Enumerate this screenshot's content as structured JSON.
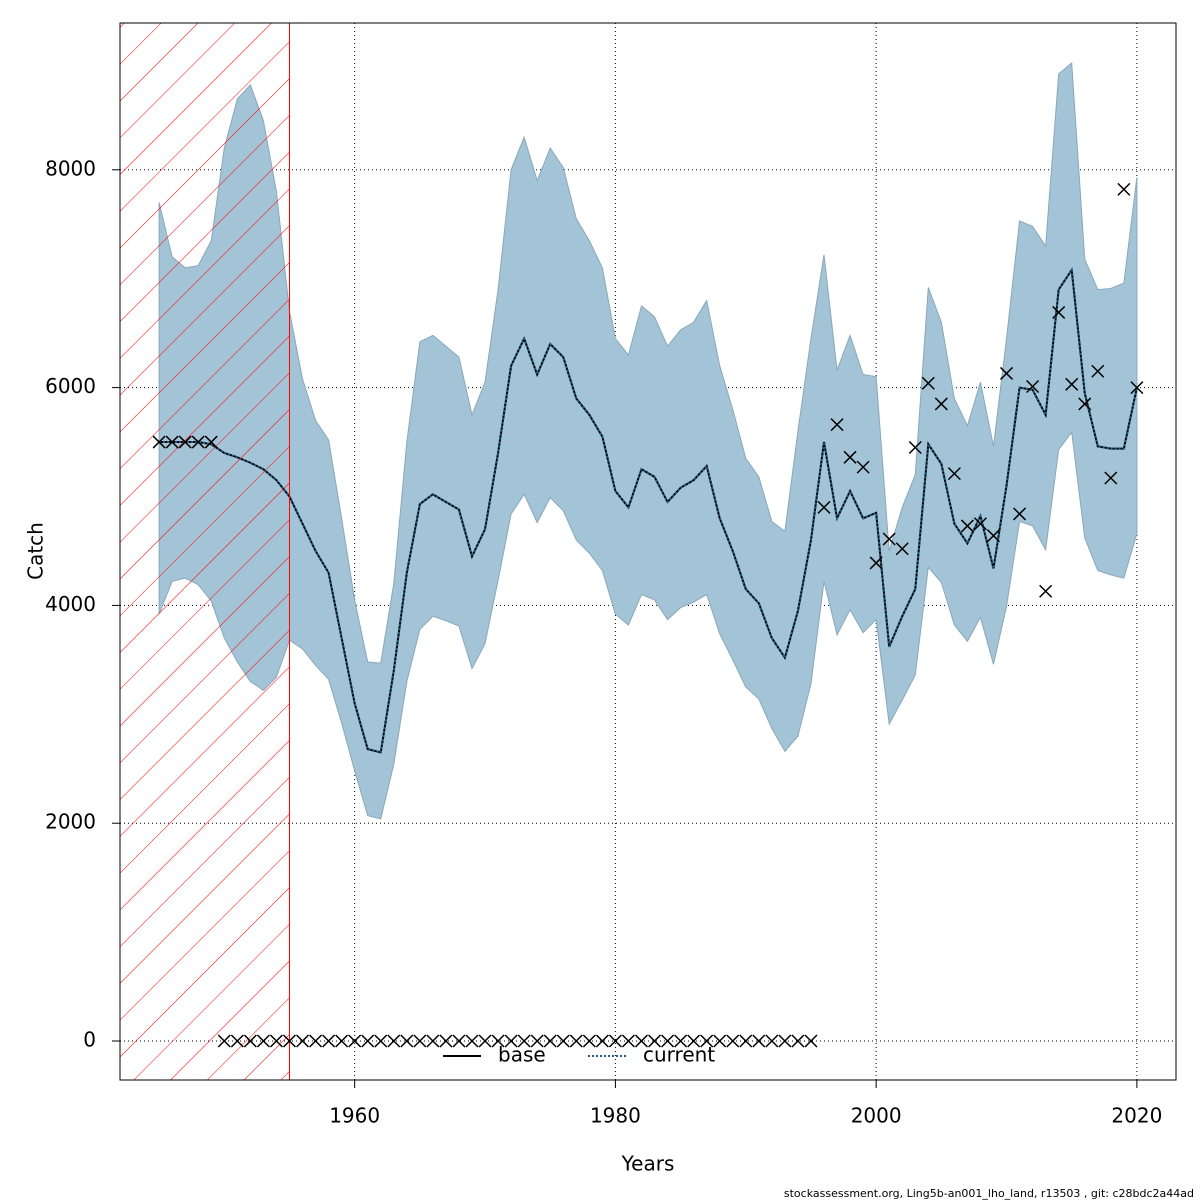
{
  "chart_data": {
    "type": "line",
    "xlabel": "Years",
    "ylabel": "Catch",
    "footer": "stockassessment.org, Ling5b-an001_lho_land, r13503 , git: c28bdc2a44ad",
    "xlim": [
      1942,
      2023
    ],
    "ylim": [
      -358,
      9348
    ],
    "xticks": [
      1960,
      1980,
      2000,
      2020
    ],
    "yticks": [
      0,
      2000,
      4000,
      6000,
      8000
    ],
    "grid": true,
    "legend": "bottom",
    "hatch_xlim": [
      1942,
      1955
    ],
    "hatch_color": "#ff0000",
    "x": [
      1945,
      1946,
      1947,
      1948,
      1949,
      1950,
      1951,
      1952,
      1953,
      1954,
      1955,
      1956,
      1957,
      1958,
      1959,
      1960,
      1961,
      1962,
      1963,
      1964,
      1965,
      1966,
      1967,
      1968,
      1969,
      1970,
      1971,
      1972,
      1973,
      1974,
      1975,
      1976,
      1977,
      1978,
      1979,
      1980,
      1981,
      1982,
      1983,
      1984,
      1985,
      1986,
      1987,
      1988,
      1989,
      1990,
      1991,
      1992,
      1993,
      1994,
      1995,
      1996,
      1997,
      1998,
      1999,
      2000,
      2001,
      2002,
      2003,
      2004,
      2005,
      2006,
      2007,
      2008,
      2009,
      2010,
      2011,
      2012,
      2013,
      2014,
      2015,
      2016,
      2017,
      2018,
      2019,
      2020
    ],
    "band": {
      "color": "#a3c3d6",
      "upper": [
        7700,
        7200,
        7100,
        7120,
        7350,
        8200,
        8650,
        8780,
        8450,
        7800,
        6700,
        6080,
        5700,
        5520,
        4800,
        4050,
        3480,
        3470,
        4200,
        5500,
        6420,
        6480,
        6380,
        6280,
        5750,
        6050,
        6900,
        8000,
        8300,
        7900,
        8200,
        8020,
        7550,
        7350,
        7100,
        6450,
        6300,
        6750,
        6650,
        6380,
        6530,
        6600,
        6800,
        6200,
        5800,
        5350,
        5180,
        4770,
        4680,
        5600,
        6450,
        7220,
        6160,
        6480,
        6120,
        6100,
        4500,
        4900,
        5200,
        6920,
        6600,
        5900,
        5650,
        6050,
        5460,
        6450,
        7530,
        7480,
        7300,
        8880,
        8980,
        7180,
        6900,
        6910,
        6960,
        7930
      ],
      "lower": [
        3920,
        4220,
        4250,
        4190,
        4040,
        3700,
        3480,
        3300,
        3220,
        3340,
        3680,
        3600,
        3450,
        3320,
        2920,
        2480,
        2070,
        2040,
        2540,
        3300,
        3780,
        3900,
        3860,
        3810,
        3420,
        3650,
        4230,
        4840,
        5020,
        4760,
        4990,
        4870,
        4600,
        4480,
        4320,
        3920,
        3820,
        4100,
        4050,
        3870,
        3980,
        4030,
        4100,
        3740,
        3500,
        3250,
        3140,
        2870,
        2660,
        2800,
        3280,
        4220,
        3730,
        3960,
        3750,
        3870,
        2910,
        3130,
        3360,
        4350,
        4210,
        3820,
        3670,
        3890,
        3460,
        3990,
        4770,
        4730,
        4510,
        5430,
        5590,
        4620,
        4320,
        4280,
        4250,
        4660
      ]
    },
    "series": [
      {
        "name": "base",
        "color": "#000000",
        "style": "solid",
        "values": [
          5500,
          5500,
          5500,
          5500,
          5480,
          5400,
          5360,
          5310,
          5250,
          5150,
          5000,
          4750,
          4500,
          4300,
          3700,
          3100,
          2680,
          2650,
          3400,
          4300,
          4930,
          5020,
          4950,
          4880,
          4450,
          4700,
          5400,
          6200,
          6450,
          6120,
          6400,
          6280,
          5900,
          5750,
          5550,
          5050,
          4900,
          5250,
          5180,
          4950,
          5080,
          5150,
          5280,
          4800,
          4500,
          4150,
          4020,
          3700,
          3520,
          3950,
          4600,
          5500,
          4800,
          5050,
          4800,
          4850,
          3620,
          3900,
          4150,
          5480,
          5300,
          4750,
          4570,
          4820,
          4340,
          5100,
          6000,
          5980,
          5750,
          6900,
          7080,
          5950,
          5460,
          5440,
          5440,
          6000
        ]
      },
      {
        "name": "current",
        "color": "#1f5f8b",
        "style": "dotted",
        "values": [
          5500,
          5500,
          5500,
          5500,
          5480,
          5400,
          5360,
          5310,
          5250,
          5150,
          5000,
          4750,
          4500,
          4300,
          3700,
          3100,
          2680,
          2650,
          3400,
          4300,
          4930,
          5020,
          4950,
          4880,
          4450,
          4700,
          5400,
          6200,
          6450,
          6120,
          6400,
          6280,
          5900,
          5750,
          5550,
          5050,
          4900,
          5250,
          5180,
          4950,
          5080,
          5150,
          5280,
          4800,
          4500,
          4150,
          4020,
          3700,
          3520,
          3950,
          4600,
          5500,
          4800,
          5050,
          4800,
          4850,
          3620,
          3900,
          4150,
          5480,
          5300,
          4750,
          4570,
          4820,
          4340,
          5100,
          6000,
          5980,
          5750,
          6900,
          7080,
          5950,
          5460,
          5440,
          5440,
          6000
        ]
      }
    ],
    "observed": {
      "color": "#000000",
      "values": [
        5500,
        5500,
        5500,
        5500,
        5500,
        0,
        0,
        0,
        0,
        0,
        0,
        0,
        0,
        0,
        0,
        0,
        0,
        0,
        0,
        0,
        0,
        0,
        0,
        0,
        0,
        0,
        0,
        0,
        0,
        0,
        0,
        0,
        0,
        0,
        0,
        0,
        0,
        0,
        0,
        0,
        0,
        0,
        0,
        0,
        0,
        0,
        0,
        0,
        0,
        0,
        0,
        4900,
        5660,
        5360,
        5270,
        4390,
        4610,
        4520,
        5450,
        6040,
        5850,
        5210,
        4730,
        4750,
        4640,
        6130,
        4840,
        6010,
        4130,
        6690,
        6030,
        5850,
        6150,
        5170,
        7820,
        6000
      ]
    }
  }
}
